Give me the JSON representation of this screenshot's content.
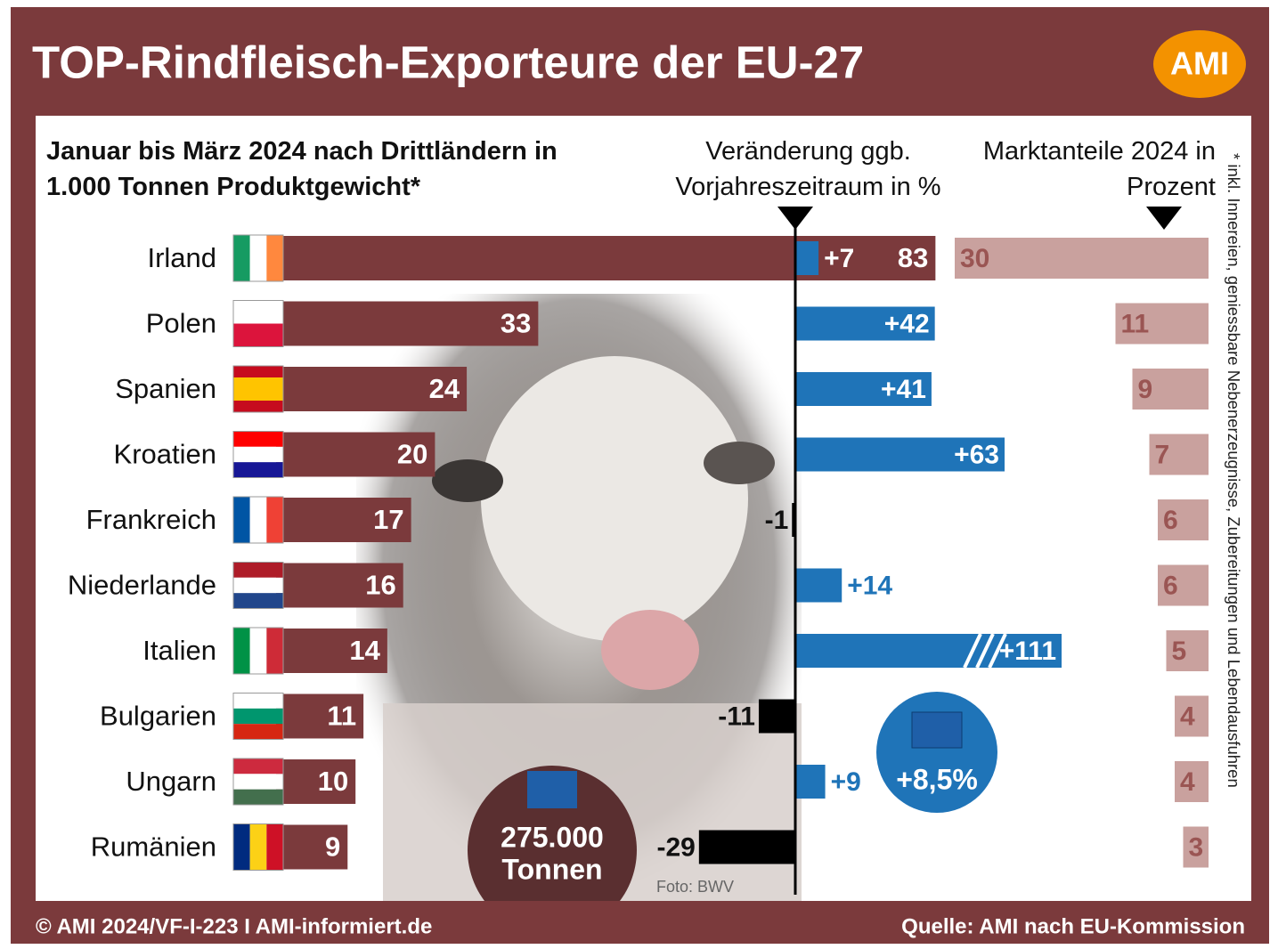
{
  "chart_data": {
    "type": "bar",
    "title": "TOP-Rindfleisch-Exporteure der EU-27",
    "logo": "AMI",
    "categories": [
      "Irland",
      "Polen",
      "Spanien",
      "Kroatien",
      "Frankreich",
      "Niederlande",
      "Italien",
      "Bulgarien",
      "Ungarn",
      "Rumänien"
    ],
    "series": [
      {
        "name": "Januar bis März 2024 nach Drittländern in 1.000 Tonnen Produktgewicht*",
        "color": "#7b3a3c",
        "values": [
          83,
          33,
          24,
          20,
          17,
          16,
          14,
          11,
          10,
          9
        ]
      },
      {
        "name": "Veränderung ggb. Vorjahreszeitraum in %",
        "color": "#1f74b8",
        "negative_color": "#000000",
        "values": [
          7,
          42,
          41,
          63,
          -1,
          14,
          111,
          -11,
          9,
          -29
        ],
        "value_labels": [
          "+7",
          "+42",
          "+41",
          "+63",
          "-1",
          "+14",
          "+111",
          "-11",
          "+9",
          "-29"
        ]
      },
      {
        "name": "Marktanteile 2024 in Prozent",
        "color": "#c9a19e",
        "values": [
          30,
          11,
          9,
          7,
          6,
          6,
          5,
          4,
          4,
          3
        ]
      }
    ],
    "footnote": "* inkl. Innereien, geniessbare Nebenerzeugnisse, Zubereitungen und Lebendausfuhren",
    "annotations": {
      "total": [
        "275.000",
        "Tonnen"
      ],
      "eu_change": "+8,5%",
      "photo_credit": "Foto: BWV"
    },
    "footer": {
      "left": "© AMI 2024/VF-I-223 I AMI-informiert.de",
      "right": "Quelle: AMI nach EU-Kommission"
    }
  }
}
